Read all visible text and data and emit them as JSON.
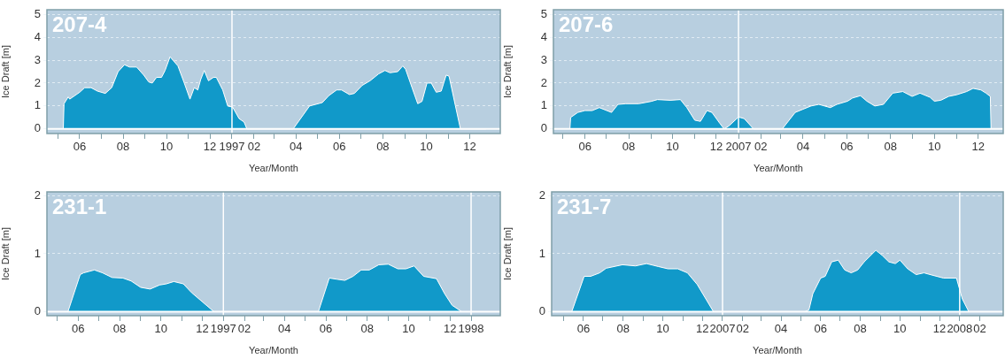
{
  "chart_data": [
    {
      "type": "area",
      "title": "207-4",
      "xlabel": "Year/Month",
      "ylabel": "Ice Draft [m]",
      "color": "#1199c9",
      "grid": "y",
      "legend": false,
      "x": [
        "1996-05-09",
        "1996-05-10",
        "1996-05-16",
        "1996-05-18",
        "1996-06-01",
        "1996-06-08",
        "1996-06-17",
        "1996-06-26",
        "1996-07-07",
        "1996-07-16",
        "1996-07-25",
        "1996-08-03",
        "1996-08-10",
        "1996-08-20",
        "1996-08-30",
        "1996-09-06",
        "1996-09-11",
        "1996-09-17",
        "1996-09-24",
        "1996-09-29",
        "1996-10-06",
        "1996-10-10",
        "1996-10-17",
        "1996-10-26",
        "1996-11-03",
        "1996-11-09",
        "1996-11-14",
        "1996-11-18",
        "1996-11-23",
        "1996-11-29",
        "1996-12-06",
        "1996-12-10",
        "1996-12-19",
        "1996-12-26",
        "1997-01-02",
        "1997-01-11",
        "1997-01-18",
        "1997-01-22",
        "1997-03-28",
        "1997-04-20",
        "1997-05-08",
        "1997-05-17",
        "1997-05-28",
        "1997-06-04",
        "1997-06-15",
        "1997-06-22",
        "1997-07-03",
        "1997-07-14",
        "1997-07-26",
        "1997-08-04",
        "1997-08-11",
        "1997-08-22",
        "1997-08-29",
        "1997-09-02",
        "1997-09-11",
        "1997-09-19",
        "1997-09-25",
        "1997-10-02",
        "1997-10-08",
        "1997-10-15",
        "1997-10-22",
        "1997-10-29",
        "1997-11-02",
        "1997-11-11",
        "1997-11-18",
        "1997-12-24"
      ],
      "values": [
        0,
        1.1,
        1.4,
        1.3,
        1.6,
        1.8,
        1.8,
        1.65,
        1.55,
        1.8,
        2.5,
        2.8,
        2.7,
        2.7,
        2.35,
        2.05,
        2.0,
        2.25,
        2.25,
        2.55,
        3.15,
        3.0,
        2.75,
        2.0,
        1.3,
        1.8,
        1.7,
        2.15,
        2.55,
        2.1,
        2.25,
        2.25,
        1.7,
        1.0,
        0.95,
        0.45,
        0.3,
        0,
        0,
        1.0,
        1.15,
        1.45,
        1.7,
        1.7,
        1.5,
        1.55,
        1.9,
        2.1,
        2.4,
        2.55,
        2.45,
        2.5,
        2.75,
        2.6,
        1.8,
        1.1,
        1.2,
        2.0,
        2.0,
        1.6,
        1.65,
        2.35,
        2.3,
        1.0,
        0,
        0
      ],
      "xlim": [
        "1996-04-16",
        "1998-01-13"
      ],
      "ylim": [
        -0.2,
        5.2
      ],
      "yticks": [
        0,
        1,
        2,
        3,
        4,
        5
      ],
      "xticks": [
        {
          "value": "1996-05-01",
          "label": null
        },
        {
          "value": "1996-06-01",
          "label": "06"
        },
        {
          "value": "1996-07-01",
          "label": null
        },
        {
          "value": "1996-08-01",
          "label": "08"
        },
        {
          "value": "1996-09-01",
          "label": null
        },
        {
          "value": "1996-10-01",
          "label": "10"
        },
        {
          "value": "1996-11-01",
          "label": null
        },
        {
          "value": "1996-12-01",
          "label": "12"
        },
        {
          "value": "1997-01-01",
          "label": "1997"
        },
        {
          "value": "1997-02-01",
          "label": "02"
        },
        {
          "value": "1997-03-01",
          "label": null
        },
        {
          "value": "1997-04-01",
          "label": "04"
        },
        {
          "value": "1997-05-01",
          "label": null
        },
        {
          "value": "1997-06-01",
          "label": "06"
        },
        {
          "value": "1997-07-01",
          "label": null
        },
        {
          "value": "1997-08-01",
          "label": "08"
        },
        {
          "value": "1997-09-01",
          "label": null
        },
        {
          "value": "1997-10-01",
          "label": "10"
        },
        {
          "value": "1997-11-01",
          "label": null
        },
        {
          "value": "1997-12-01",
          "label": "12"
        }
      ],
      "ref_lines": [
        {
          "axis": "x",
          "value": "1997-01-01",
          "color": "#ffffff"
        },
        {
          "axis": "y",
          "value": 0,
          "color": "#ffffff"
        }
      ]
    },
    {
      "type": "area",
      "title": "207-6",
      "xlabel": "Year/Month",
      "ylabel": "Ice Draft [m]",
      "color": "#1199c9",
      "grid": "y",
      "legend": false,
      "x": [
        "2006-05-11",
        "2006-05-12",
        "2006-05-22",
        "2006-06-01",
        "2006-06-11",
        "2006-06-21",
        "2006-07-08",
        "2006-07-17",
        "2006-07-28",
        "2006-08-15",
        "2006-09-01",
        "2006-09-10",
        "2006-09-28",
        "2006-10-12",
        "2006-10-21",
        "2006-11-01",
        "2006-11-09",
        "2006-11-18",
        "2006-11-25",
        "2006-12-06",
        "2006-12-12",
        "2006-12-19",
        "2007-01-01",
        "2007-01-09",
        "2007-01-22",
        "2007-03-03",
        "2007-03-21",
        "2007-04-01",
        "2007-04-12",
        "2007-04-23",
        "2007-05-09",
        "2007-05-18",
        "2007-06-02",
        "2007-06-09",
        "2007-06-20",
        "2007-06-29",
        "2007-07-10",
        "2007-07-22",
        "2007-08-04",
        "2007-08-18",
        "2007-08-31",
        "2007-09-11",
        "2007-09-25",
        "2007-10-01",
        "2007-10-10",
        "2007-10-21",
        "2007-11-01",
        "2007-11-15",
        "2007-11-24",
        "2007-12-05",
        "2007-12-12",
        "2007-12-18",
        "2007-12-19"
      ],
      "values": [
        0,
        0.5,
        0.72,
        0.8,
        0.8,
        0.93,
        0.72,
        1.07,
        1.1,
        1.1,
        1.2,
        1.28,
        1.25,
        1.28,
        0.93,
        0.38,
        0.33,
        0.8,
        0.72,
        0.24,
        0,
        0.14,
        0.52,
        0.45,
        0,
        0,
        0.72,
        0.86,
        1.0,
        1.07,
        0.93,
        1.07,
        1.21,
        1.35,
        1.45,
        1.21,
        1.0,
        1.07,
        1.56,
        1.63,
        1.42,
        1.56,
        1.38,
        1.21,
        1.25,
        1.42,
        1.49,
        1.63,
        1.77,
        1.7,
        1.56,
        1.42,
        0
      ],
      "xlim": [
        "2006-04-18",
        "2008-01-05"
      ],
      "ylim": [
        -0.2,
        5.2
      ],
      "yticks": [
        0,
        1,
        2,
        3,
        4,
        5
      ],
      "xticks": [
        {
          "value": "2006-05-01",
          "label": null
        },
        {
          "value": "2006-06-01",
          "label": "06"
        },
        {
          "value": "2006-07-01",
          "label": null
        },
        {
          "value": "2006-08-01",
          "label": "08"
        },
        {
          "value": "2006-09-01",
          "label": null
        },
        {
          "value": "2006-10-01",
          "label": "10"
        },
        {
          "value": "2006-11-01",
          "label": null
        },
        {
          "value": "2006-12-01",
          "label": "12"
        },
        {
          "value": "2007-01-01",
          "label": "2007"
        },
        {
          "value": "2007-02-01",
          "label": "02"
        },
        {
          "value": "2007-03-01",
          "label": null
        },
        {
          "value": "2007-04-01",
          "label": "04"
        },
        {
          "value": "2007-05-01",
          "label": null
        },
        {
          "value": "2007-06-01",
          "label": "06"
        },
        {
          "value": "2007-07-01",
          "label": null
        },
        {
          "value": "2007-08-01",
          "label": "08"
        },
        {
          "value": "2007-09-01",
          "label": null
        },
        {
          "value": "2007-10-01",
          "label": "10"
        },
        {
          "value": "2007-11-01",
          "label": null
        },
        {
          "value": "2007-12-01",
          "label": "12"
        }
      ],
      "ref_lines": [
        {
          "axis": "x",
          "value": "2007-01-01",
          "color": "#ffffff"
        },
        {
          "axis": "y",
          "value": 0,
          "color": "#ffffff"
        }
      ]
    },
    {
      "type": "area",
      "title": "231-1",
      "xlabel": "Year/Month",
      "ylabel": "Ice Draft [m]",
      "color": "#1199c9",
      "grid": "y",
      "legend": false,
      "x": [
        "1996-05-17",
        "1996-06-04",
        "1996-06-09",
        "1996-06-25",
        "1996-07-07",
        "1996-07-21",
        "1996-08-06",
        "1996-08-18",
        "1996-09-01",
        "1996-09-15",
        "1996-09-29",
        "1996-10-09",
        "1996-10-20",
        "1996-11-03",
        "1996-11-15",
        "1996-11-29",
        "1996-12-18",
        "1997-05-21",
        "1997-06-06",
        "1997-06-17",
        "1997-06-29",
        "1997-07-11",
        "1997-07-23",
        "1997-08-04",
        "1997-08-18",
        "1997-09-01",
        "1997-09-15",
        "1997-09-27",
        "1997-10-09",
        "1997-10-23",
        "1997-11-11",
        "1997-11-23",
        "1997-12-04",
        "1997-12-18"
      ],
      "values": [
        0,
        0.64,
        0.67,
        0.72,
        0.67,
        0.59,
        0.58,
        0.53,
        0.42,
        0.39,
        0.46,
        0.48,
        0.52,
        0.48,
        0.33,
        0.19,
        0,
        0,
        0.58,
        0.56,
        0.54,
        0.61,
        0.72,
        0.72,
        0.81,
        0.82,
        0.74,
        0.74,
        0.79,
        0.61,
        0.57,
        0.31,
        0.11,
        0
      ],
      "xlim": [
        "1996-04-16",
        "1998-02-13"
      ],
      "ylim": [
        -0.07,
        2.07
      ],
      "yticks": [
        0,
        1,
        2
      ],
      "xticks": [
        {
          "value": "1996-05-01",
          "label": null
        },
        {
          "value": "1996-06-01",
          "label": "06"
        },
        {
          "value": "1996-07-01",
          "label": null
        },
        {
          "value": "1996-08-01",
          "label": "08"
        },
        {
          "value": "1996-09-01",
          "label": null
        },
        {
          "value": "1996-10-01",
          "label": "10"
        },
        {
          "value": "1996-11-01",
          "label": null
        },
        {
          "value": "1996-12-01",
          "label": "12"
        },
        {
          "value": "1997-01-01",
          "label": "1997"
        },
        {
          "value": "1997-02-01",
          "label": "02"
        },
        {
          "value": "1997-03-01",
          "label": null
        },
        {
          "value": "1997-04-01",
          "label": "04"
        },
        {
          "value": "1997-05-01",
          "label": null
        },
        {
          "value": "1997-06-01",
          "label": "06"
        },
        {
          "value": "1997-07-01",
          "label": null
        },
        {
          "value": "1997-08-01",
          "label": "08"
        },
        {
          "value": "1997-09-01",
          "label": null
        },
        {
          "value": "1997-10-01",
          "label": "10"
        },
        {
          "value": "1997-11-01",
          "label": null
        },
        {
          "value": "1997-12-01",
          "label": "12"
        },
        {
          "value": "1998-01-01",
          "label": "1998"
        }
      ],
      "ref_lines": [
        {
          "axis": "x",
          "value": "1997-01-01",
          "color": "#ffffff"
        },
        {
          "axis": "x",
          "value": "1998-01-01",
          "color": "#ffffff"
        },
        {
          "axis": "y",
          "value": 0,
          "color": "#ffffff"
        }
      ]
    },
    {
      "type": "area",
      "title": "231-7",
      "xlabel": "Year/Month",
      "ylabel": "Ice Draft [m]",
      "color": "#1199c9",
      "grid": "y",
      "legend": false,
      "x": [
        "2006-05-14",
        "2006-06-02",
        "2006-06-12",
        "2006-06-26",
        "2006-07-06",
        "2006-07-31",
        "2006-08-20",
        "2006-09-06",
        "2006-09-24",
        "2006-10-09",
        "2006-10-24",
        "2006-11-08",
        "2006-11-23",
        "2006-12-18",
        "2007-05-08",
        "2007-05-14",
        "2007-05-20",
        "2007-06-01",
        "2007-06-08",
        "2007-06-18",
        "2007-06-28",
        "2007-07-08",
        "2007-07-18",
        "2007-07-28",
        "2007-08-07",
        "2007-08-25",
        "2007-09-04",
        "2007-09-14",
        "2007-09-24",
        "2007-10-01",
        "2007-10-13",
        "2007-10-26",
        "2007-11-07",
        "2007-11-20",
        "2007-12-07",
        "2007-12-27",
        "2008-01-05",
        "2008-01-15"
      ],
      "values": [
        0,
        0.61,
        0.61,
        0.67,
        0.75,
        0.81,
        0.79,
        0.83,
        0.78,
        0.74,
        0.74,
        0.67,
        0.47,
        0,
        0,
        0.03,
        0.31,
        0.58,
        0.61,
        0.86,
        0.89,
        0.72,
        0.67,
        0.72,
        0.86,
        1.06,
        0.97,
        0.86,
        0.83,
        0.89,
        0.74,
        0.64,
        0.67,
        0.63,
        0.58,
        0.58,
        0.22,
        0
      ],
      "xlim": [
        "2006-04-13",
        "2008-03-08"
      ],
      "ylim": [
        -0.07,
        2.07
      ],
      "yticks": [
        0,
        1,
        2
      ],
      "xticks": [
        {
          "value": "2006-05-01",
          "label": null
        },
        {
          "value": "2006-06-01",
          "label": "06"
        },
        {
          "value": "2006-07-01",
          "label": null
        },
        {
          "value": "2006-08-01",
          "label": "08"
        },
        {
          "value": "2006-09-01",
          "label": null
        },
        {
          "value": "2006-10-01",
          "label": "10"
        },
        {
          "value": "2006-11-01",
          "label": null
        },
        {
          "value": "2006-12-01",
          "label": "12"
        },
        {
          "value": "2007-01-01",
          "label": "2007"
        },
        {
          "value": "2007-02-01",
          "label": "02"
        },
        {
          "value": "2007-03-01",
          "label": null
        },
        {
          "value": "2007-04-01",
          "label": "04"
        },
        {
          "value": "2007-05-01",
          "label": null
        },
        {
          "value": "2007-06-01",
          "label": "06"
        },
        {
          "value": "2007-07-01",
          "label": null
        },
        {
          "value": "2007-08-01",
          "label": "08"
        },
        {
          "value": "2007-09-01",
          "label": null
        },
        {
          "value": "2007-10-01",
          "label": "10"
        },
        {
          "value": "2007-11-01",
          "label": null
        },
        {
          "value": "2007-12-01",
          "label": "12"
        },
        {
          "value": "2008-01-01",
          "label": "2008"
        },
        {
          "value": "2008-02-01",
          "label": "02"
        }
      ],
      "ref_lines": [
        {
          "axis": "x",
          "value": "2007-01-01",
          "color": "#ffffff"
        },
        {
          "axis": "x",
          "value": "2008-01-01",
          "color": "#ffffff"
        },
        {
          "axis": "y",
          "value": 0,
          "color": "#ffffff"
        }
      ]
    }
  ]
}
